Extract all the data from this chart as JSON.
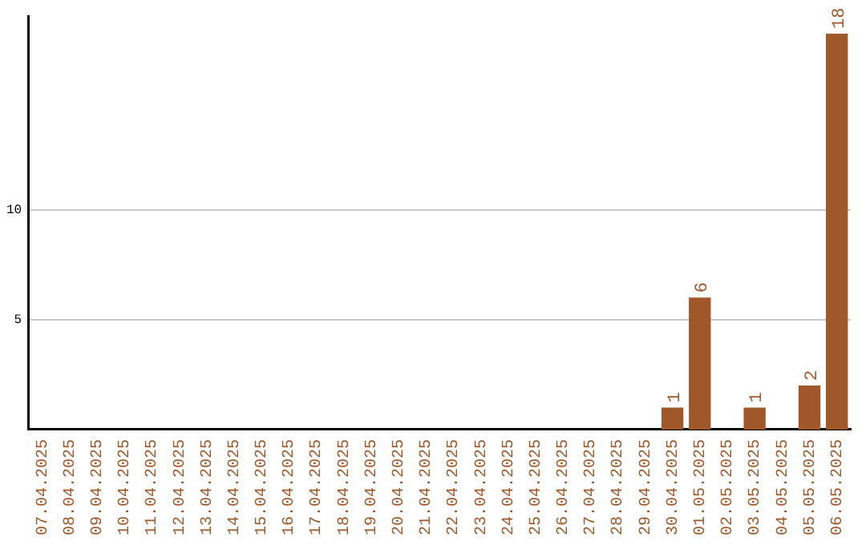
{
  "chart_data": {
    "type": "bar",
    "categories": [
      "07.04.2025",
      "08.04.2025",
      "09.04.2025",
      "10.04.2025",
      "11.04.2025",
      "12.04.2025",
      "13.04.2025",
      "14.04.2025",
      "15.04.2025",
      "16.04.2025",
      "17.04.2025",
      "18.04.2025",
      "19.04.2025",
      "20.04.2025",
      "21.04.2025",
      "22.04.2025",
      "23.04.2025",
      "24.04.2025",
      "25.04.2025",
      "26.04.2025",
      "27.04.2025",
      "28.04.2025",
      "29.04.2025",
      "30.04.2025",
      "01.05.2025",
      "02.05.2025",
      "03.05.2025",
      "04.05.2025",
      "05.05.2025",
      "06.05.2025"
    ],
    "values": [
      0,
      0,
      0,
      0,
      0,
      0,
      0,
      0,
      0,
      0,
      0,
      0,
      0,
      0,
      0,
      0,
      0,
      0,
      0,
      0,
      0,
      0,
      0,
      1,
      6,
      0,
      1,
      0,
      2,
      18
    ],
    "value_labels": [
      null,
      null,
      null,
      null,
      null,
      null,
      null,
      null,
      null,
      null,
      null,
      null,
      null,
      null,
      null,
      null,
      null,
      null,
      null,
      null,
      null,
      null,
      null,
      "1",
      "6",
      null,
      "1",
      null,
      "2",
      "18"
    ],
    "color": "#a0582a",
    "ylim": [
      0,
      18.8
    ],
    "yticks": [
      5,
      10
    ],
    "grid": "y",
    "legend": false
  }
}
